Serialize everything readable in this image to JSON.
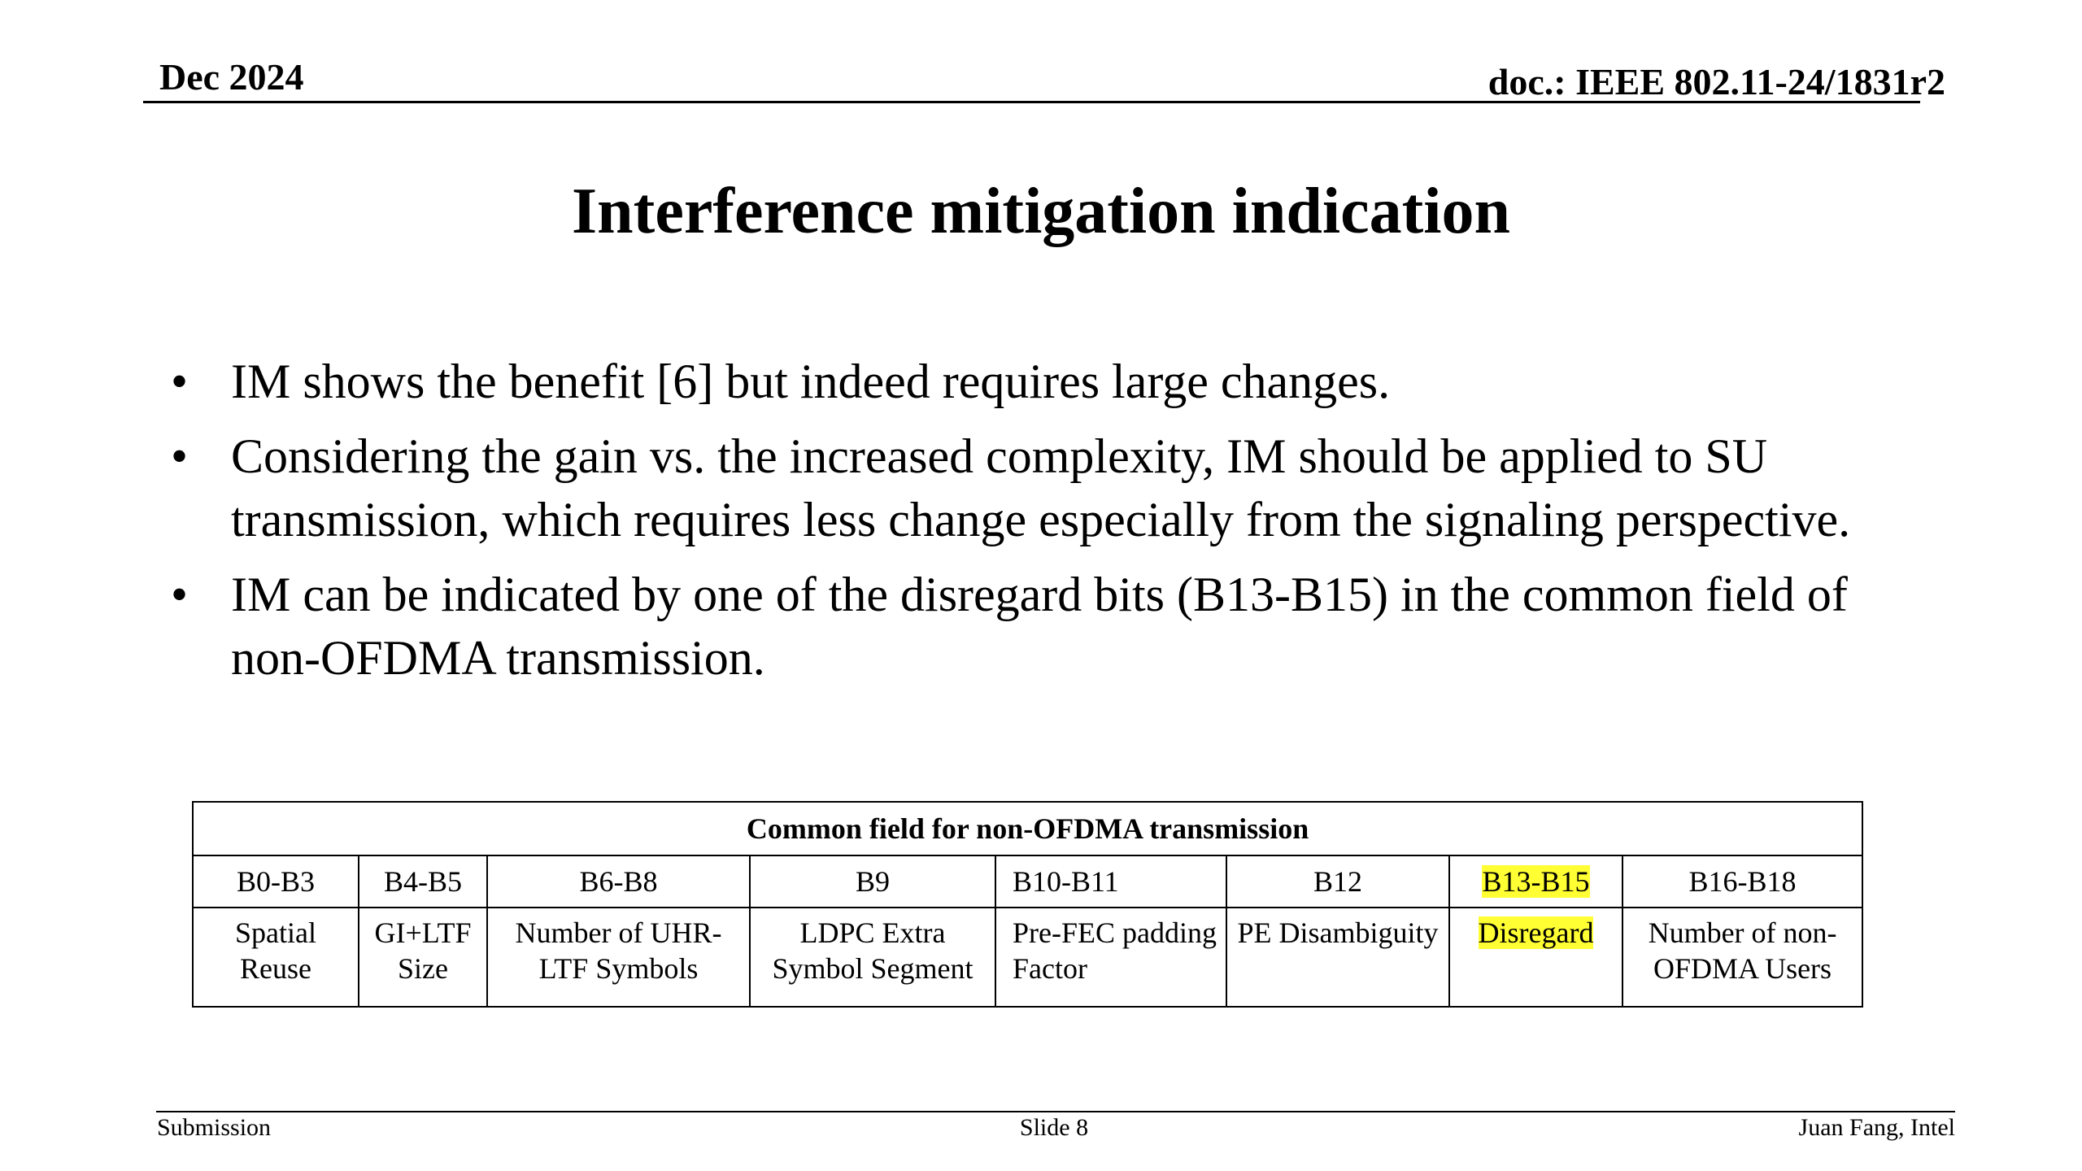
{
  "header": {
    "date": "Dec 2024",
    "doc": "doc.: IEEE 802.11-24/1831r2"
  },
  "title": "Interference mitigation indication",
  "bullets": [
    "IM shows the benefit [6] but indeed requires large changes.",
    "Considering the gain vs. the increased complexity, IM should be applied to SU transmission, which requires less change especially from the signaling perspective.",
    "IM can be indicated by one of the disregard bits (B13-B15) in the common field of non-OFDMA transmission."
  ],
  "bullet_symbol": "•",
  "table": {
    "caption": "Common field for non-OFDMA transmission",
    "bits": [
      "B0-B3",
      "B4-B5",
      "B6-B8",
      "B9",
      "B10-B11",
      "B12",
      "B13-B15",
      "B16-B18"
    ],
    "descriptions": [
      "Spatial Reuse",
      "GI+LTF Size",
      "Number of UHR-LTF Symbols",
      "LDPC Extra Symbol Segment",
      "Pre-FEC padding Factor",
      "PE Disambiguity",
      "Disregard",
      "Number of non-OFDMA Users"
    ],
    "highlight_color": "#ffff33"
  },
  "footer": {
    "left": "Submission",
    "center": "Slide 8",
    "right": "Juan Fang, Intel"
  }
}
